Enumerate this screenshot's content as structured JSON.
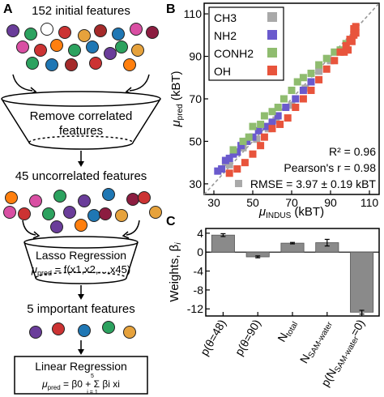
{
  "panels": {
    "a": "A",
    "b": "B",
    "c": "C"
  },
  "workflow": {
    "step1_label": "152 initial features",
    "funnel1_line1": "Remove correlated",
    "funnel1_line2": "features",
    "step2_label": "45 uncorrelated features",
    "funnel2_title": "Lasso Regression",
    "funnel2_formula_lhs": "μ",
    "funnel2_formula_sub": "pred",
    "funnel2_formula_rhs": " = f(x1,x2,...,x45)",
    "step3_label": "5 important features",
    "box_title": "Linear Regression",
    "box_formula_lhs": "μ",
    "box_formula_sub": "pred",
    "box_formula_rhs": " = β0 + Σ βi xi",
    "sum_top": "5",
    "sum_bottom": "i = 1",
    "dot_colors_row1": [
      "#6a3d9a",
      "#2ca25f",
      "#ffffff",
      "#cc3333",
      "#e6a23c",
      "#a52a2a",
      "#1f77b4",
      "#d94fa3",
      "#8c1d40",
      "#ff7f0e",
      "#2ca25f"
    ],
    "dot_colors_row2": [
      "#d94fa3",
      "#cc3333",
      "#2ca25f",
      "#1f77b4",
      "#6a3d9a",
      "#e6a23c",
      "#2ca25f",
      "#1f77b4",
      "#a52a2a",
      "#cc3333",
      "#ff7f0e"
    ],
    "dot_colors_row3": [
      "#ff7f0e",
      "#d94fa3",
      "#2ca25f",
      "#6a3d9a",
      "#1f77b4",
      "#8c1d40",
      "#cc3333",
      "#e6a23c"
    ],
    "dot_colors_row4": [
      "#2ca25f",
      "#6a3d9a",
      "#1f77b4",
      "#cc3333",
      "#e6a23c",
      "#d94fa3",
      "#ff7f0e",
      "#8c1d40",
      "#6a3d9a"
    ],
    "dot_colors_row5": [
      "#6a3d9a",
      "#cc3333",
      "#1f77b4",
      "#2ca25f",
      "#e6a23c"
    ]
  },
  "chart_data": [
    {
      "type": "scatter",
      "panel": "B",
      "ylabel_base": "μ",
      "ylabel_sub": "pred",
      "ylabel_unit": " (kBT)",
      "xlabel_base": "μ",
      "xlabel_sub": "INDUS",
      "xlabel_unit": " (kBT)",
      "xlim": [
        25,
        115
      ],
      "ylim": [
        25,
        115
      ],
      "xticks": [
        30,
        50,
        70,
        90,
        110
      ],
      "yticks": [
        30,
        50,
        70,
        90,
        110
      ],
      "legend_position": "top-left",
      "parity_line": true,
      "stats": {
        "r2": "R² = 0.96",
        "pearson": "Pearson's r = 0.98",
        "rmse": "RMSE = 3.97 ± 0.19 kBT"
      },
      "series": [
        {
          "name": "CH3",
          "color": "#a9a9a9",
          "points": [
            [
              36,
              40
            ],
            [
              38,
              39
            ],
            [
              45,
              47
            ],
            [
              52,
              51
            ],
            [
              58,
              56
            ],
            [
              62,
              60
            ],
            [
              70,
              67
            ],
            [
              77,
              75
            ],
            [
              84,
              83
            ],
            [
              90,
              88
            ]
          ]
        },
        {
          "name": "NH2",
          "color": "#6a5acd",
          "points": [
            [
              32,
              36
            ],
            [
              34,
              37
            ],
            [
              36,
              41
            ],
            [
              38,
              42
            ],
            [
              40,
              44
            ],
            [
              42,
              45
            ],
            [
              44,
              48
            ],
            [
              47,
              50
            ],
            [
              50,
              52
            ],
            [
              53,
              55
            ],
            [
              57,
              57
            ],
            [
              60,
              59
            ],
            [
              63,
              62
            ],
            [
              67,
              66
            ],
            [
              72,
              70
            ],
            [
              76,
              74
            ],
            [
              80,
              78
            ]
          ]
        },
        {
          "name": "CONH2",
          "color": "#8fbc6f",
          "points": [
            [
              40,
              46
            ],
            [
              45,
              50
            ],
            [
              48,
              52
            ],
            [
              50,
              57
            ],
            [
              54,
              58
            ],
            [
              56,
              62
            ],
            [
              60,
              64
            ],
            [
              63,
              66
            ],
            [
              66,
              70
            ],
            [
              70,
              74
            ],
            [
              73,
              78
            ],
            [
              76,
              80
            ],
            [
              80,
              82
            ],
            [
              84,
              86
            ],
            [
              88,
              89
            ],
            [
              92,
              92
            ],
            [
              95,
              93
            ],
            [
              98,
              96
            ]
          ]
        },
        {
          "name": "OH",
          "color": "#e8543c",
          "points": [
            [
              38,
              35
            ],
            [
              42,
              37
            ],
            [
              46,
              40
            ],
            [
              50,
              44
            ],
            [
              54,
              48
            ],
            [
              56,
              52
            ],
            [
              60,
              56
            ],
            [
              64,
              58
            ],
            [
              68,
              61
            ],
            [
              72,
              66
            ],
            [
              76,
              70
            ],
            [
              80,
              74
            ],
            [
              84,
              79
            ],
            [
              88,
              84
            ],
            [
              92,
              88
            ],
            [
              95,
              92
            ],
            [
              98,
              95
            ],
            [
              100,
              98
            ],
            [
              102,
              100
            ],
            [
              102,
              103
            ],
            [
              103,
              104
            ],
            [
              103,
              101
            ],
            [
              101,
              97
            ],
            [
              99,
              93
            ],
            [
              97,
              92
            ]
          ]
        }
      ]
    },
    {
      "type": "bar",
      "panel": "C",
      "ylabel_base": "Weights, β",
      "ylabel_sub": "i",
      "ylim": [
        -13.5,
        5
      ],
      "yticks": [
        4,
        0,
        -4,
        -8,
        -12
      ],
      "bar_color": "#8a8a8a",
      "categories": [
        "p(θ=48)",
        "p(θ=90)",
        "N_total",
        "N_SAM-water",
        "p(N_SAM-water=0)"
      ],
      "category_labels": [
        {
          "main": "p(θ=48)",
          "sub": ""
        },
        {
          "main": "p(θ=90)",
          "sub": ""
        },
        {
          "main": "N",
          "sub": "total"
        },
        {
          "main": "N",
          "sub": "SAM-water"
        },
        {
          "main": "p(N",
          "sub": "SAM-water",
          "tail": "=0)"
        }
      ],
      "values": [
        3.6,
        -1.0,
        1.9,
        2.0,
        -12.7
      ],
      "errors": [
        0.3,
        0.2,
        0.15,
        0.7,
        0.4
      ]
    }
  ]
}
